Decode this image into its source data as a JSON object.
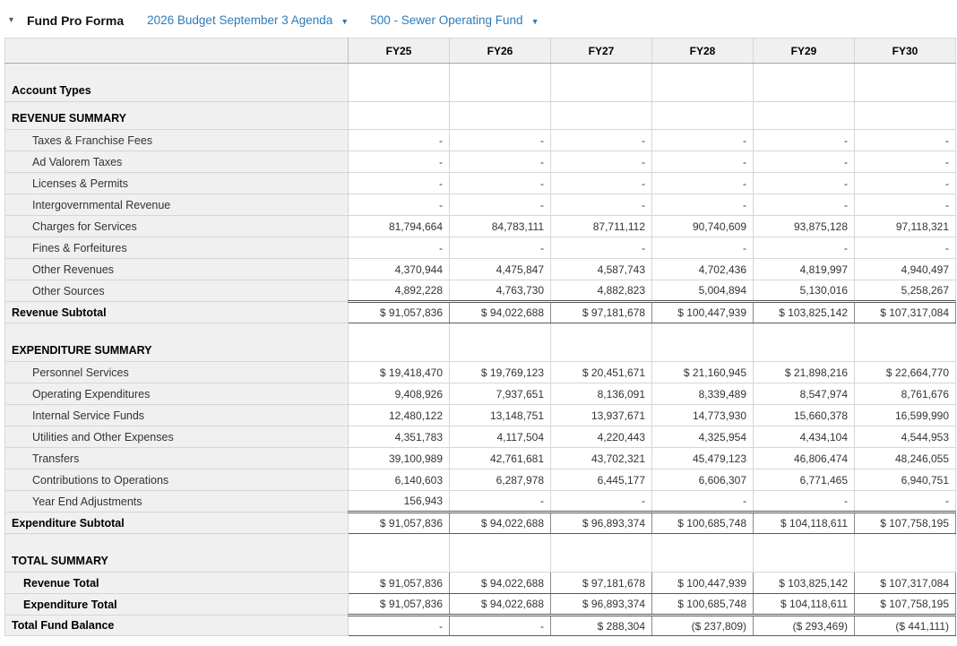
{
  "header": {
    "collapse_icon": "▾",
    "title": "Fund Pro Forma",
    "budget_dropdown": {
      "label": "2026 Budget September 3 Agenda",
      "arrow": "▼"
    },
    "fund_dropdown": {
      "label": "500 - Sewer Operating Fund",
      "arrow": "▼"
    }
  },
  "table": {
    "columns": [
      "FY25",
      "FY26",
      "FY27",
      "FY28",
      "FY29",
      "FY30"
    ],
    "rows": [
      {
        "type": "group-tall",
        "label": "Account Types",
        "values": [
          "",
          "",
          "",
          "",
          "",
          ""
        ]
      },
      {
        "type": "group",
        "label": "REVENUE SUMMARY",
        "values": [
          "",
          "",
          "",
          "",
          "",
          ""
        ]
      },
      {
        "type": "account",
        "label": "Taxes & Franchise Fees",
        "values": [
          "-",
          "-",
          "-",
          "-",
          "-",
          "-"
        ]
      },
      {
        "type": "account",
        "label": "Ad Valorem Taxes",
        "values": [
          "-",
          "-",
          "-",
          "-",
          "-",
          "-"
        ]
      },
      {
        "type": "account",
        "label": "Licenses & Permits",
        "values": [
          "-",
          "-",
          "-",
          "-",
          "-",
          "-"
        ]
      },
      {
        "type": "account",
        "label": "Intergovernmental Revenue",
        "values": [
          "-",
          "-",
          "-",
          "-",
          "-",
          "-"
        ]
      },
      {
        "type": "account",
        "label": "Charges for Services",
        "values": [
          "81,794,664",
          "84,783,111",
          "87,711,112",
          "90,740,609",
          "93,875,128",
          "97,118,321"
        ]
      },
      {
        "type": "account",
        "label": "Fines & Forfeitures",
        "values": [
          "-",
          "-",
          "-",
          "-",
          "-",
          "-"
        ]
      },
      {
        "type": "account",
        "label": "Other Revenues",
        "values": [
          "4,370,944",
          "4,475,847",
          "4,587,743",
          "4,702,436",
          "4,819,997",
          "4,940,497"
        ]
      },
      {
        "type": "account",
        "label": "Other Sources",
        "values": [
          "4,892,228",
          "4,763,730",
          "4,882,823",
          "5,004,894",
          "5,130,016",
          "5,258,267"
        ]
      },
      {
        "type": "subtotal",
        "label": "Revenue Subtotal",
        "values": [
          "$ 91,057,836",
          "$ 94,022,688",
          "$ 97,181,678",
          "$ 100,447,939",
          "$ 103,825,142",
          "$ 107,317,084"
        ]
      },
      {
        "type": "group-tall",
        "label": "EXPENDITURE SUMMARY",
        "values": [
          "",
          "",
          "",
          "",
          "",
          ""
        ]
      },
      {
        "type": "account",
        "label": "Personnel Services",
        "values": [
          "$ 19,418,470",
          "$ 19,769,123",
          "$ 20,451,671",
          "$ 21,160,945",
          "$ 21,898,216",
          "$ 22,664,770"
        ]
      },
      {
        "type": "account",
        "label": "Operating Expenditures",
        "values": [
          "9,408,926",
          "7,937,651",
          "8,136,091",
          "8,339,489",
          "8,547,974",
          "8,761,676"
        ]
      },
      {
        "type": "account",
        "label": "Internal Service Funds",
        "values": [
          "12,480,122",
          "13,148,751",
          "13,937,671",
          "14,773,930",
          "15,660,378",
          "16,599,990"
        ]
      },
      {
        "type": "account",
        "label": "Utilities and Other Expenses",
        "values": [
          "4,351,783",
          "4,117,504",
          "4,220,443",
          "4,325,954",
          "4,434,104",
          "4,544,953"
        ]
      },
      {
        "type": "account",
        "label": "Transfers",
        "values": [
          "39,100,989",
          "42,761,681",
          "43,702,321",
          "45,479,123",
          "46,806,474",
          "48,246,055"
        ]
      },
      {
        "type": "account",
        "label": "Contributions to Operations",
        "values": [
          "6,140,603",
          "6,287,978",
          "6,445,177",
          "6,606,307",
          "6,771,465",
          "6,940,751"
        ]
      },
      {
        "type": "account",
        "label": "Year End Adjustments",
        "values": [
          "156,943",
          "-",
          "-",
          "-",
          "-",
          "-"
        ]
      },
      {
        "type": "subtotal",
        "label": "Expenditure Subtotal",
        "values": [
          "$ 91,057,836",
          "$ 94,022,688",
          "$ 96,893,374",
          "$ 100,685,748",
          "$ 104,118,611",
          "$ 107,758,195"
        ]
      },
      {
        "type": "group-tall",
        "label": "TOTAL SUMMARY",
        "values": [
          "",
          "",
          "",
          "",
          "",
          ""
        ]
      },
      {
        "type": "total",
        "label": "Revenue Total",
        "values": [
          "$ 91,057,836",
          "$ 94,022,688",
          "$ 97,181,678",
          "$ 100,447,939",
          "$ 103,825,142",
          "$ 107,317,084"
        ]
      },
      {
        "type": "total",
        "label": "Expenditure Total",
        "values": [
          "$ 91,057,836",
          "$ 94,022,688",
          "$ 96,893,374",
          "$ 100,685,748",
          "$ 104,118,611",
          "$ 107,758,195"
        ]
      },
      {
        "type": "grand",
        "label": "Total Fund Balance",
        "values": [
          "-",
          "-",
          "$ 288,304",
          "($ 237,809)",
          "($ 293,469)",
          "($ 441,111)"
        ]
      }
    ]
  },
  "colors": {
    "link_blue": "#2d7bb9",
    "label_column_bg": "#f0f0f0",
    "grid_border": "#d6d6d6",
    "outer_border": "#9b9b9b",
    "accounting_border": "#595959"
  }
}
